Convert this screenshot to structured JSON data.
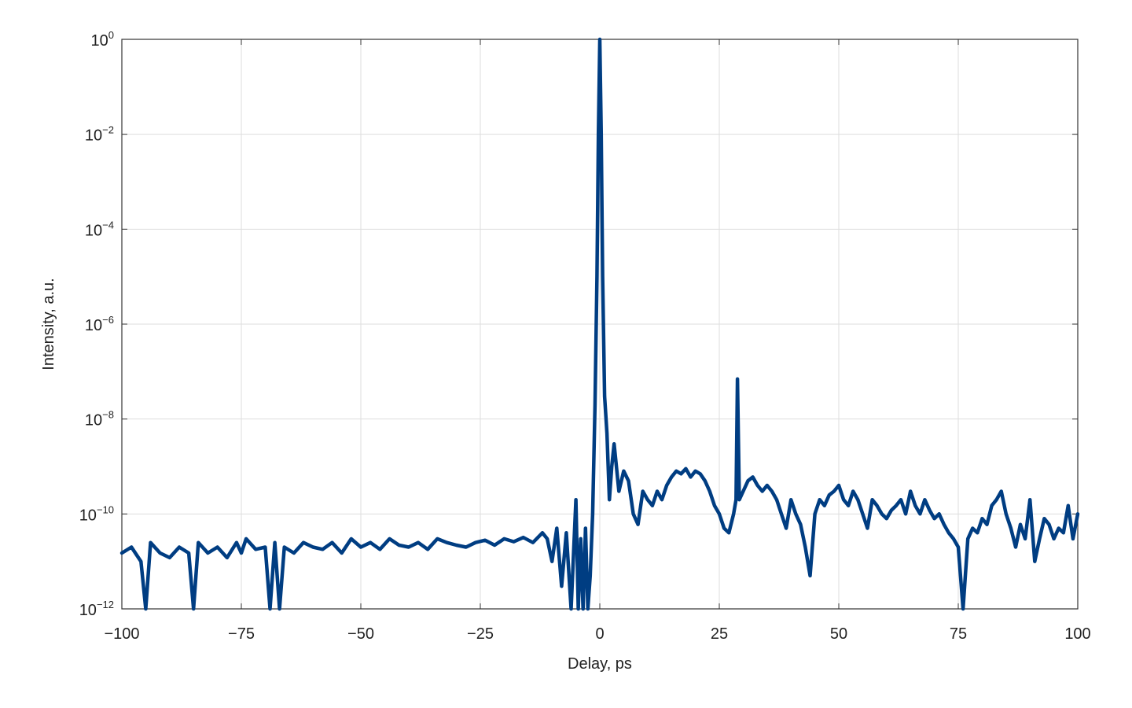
{
  "chart_data": {
    "type": "line",
    "title": "",
    "xlabel": "Delay, ps",
    "ylabel": "Intensity, a.u.",
    "xlim": [
      -100,
      100
    ],
    "ylim": [
      1e-12,
      1
    ],
    "yscale": "log",
    "grid": true,
    "x_ticks": [
      -100,
      -75,
      -50,
      -25,
      0,
      25,
      50,
      75,
      100
    ],
    "y_ticks": [
      {
        "base": "10",
        "exp": "0",
        "value": 1
      },
      {
        "base": "10",
        "exp": "-2",
        "value": 0.01
      },
      {
        "base": "10",
        "exp": "-4",
        "value": 0.0001
      },
      {
        "base": "10",
        "exp": "-6",
        "value": 1e-06
      },
      {
        "base": "10",
        "exp": "-8",
        "value": 1e-08
      },
      {
        "base": "10",
        "exp": "-10",
        "value": 1e-10
      },
      {
        "base": "10",
        "exp": "-12",
        "value": 1e-12
      }
    ],
    "series": [
      {
        "color": "#003d82",
        "x": [
          -100,
          -98,
          -96,
          -95,
          -94,
          -92,
          -90,
          -88,
          -86,
          -85,
          -84,
          -82,
          -80,
          -78,
          -76,
          -75,
          -74,
          -72,
          -70,
          -69,
          -68,
          -67,
          -66,
          -64,
          -62,
          -60,
          -58,
          -56,
          -54,
          -52,
          -50,
          -48,
          -46,
          -44,
          -42,
          -40,
          -38,
          -36,
          -34,
          -32,
          -30,
          -28,
          -26,
          -24,
          -22,
          -20,
          -18,
          -16,
          -14,
          -12,
          -11,
          -10,
          -9,
          -8,
          -7,
          -6,
          -5,
          -4.5,
          -4,
          -3.5,
          -3,
          -2.5,
          -2,
          -1.5,
          -1,
          -0.6,
          -0.3,
          0,
          0.3,
          0.6,
          1,
          1.5,
          2,
          2.5,
          3,
          4,
          5,
          6,
          7,
          8,
          9,
          10,
          11,
          12,
          13,
          14,
          15,
          16,
          17,
          18,
          19,
          20,
          21,
          22,
          23,
          24,
          25,
          26,
          27,
          28,
          28.5,
          28.8,
          29.2,
          30,
          31,
          32,
          33,
          34,
          35,
          36,
          37,
          38,
          39,
          40,
          41,
          42,
          43,
          44,
          45,
          46,
          47,
          48,
          49,
          50,
          51,
          52,
          53,
          54,
          55,
          56,
          57,
          58,
          59,
          60,
          61,
          62,
          63,
          64,
          65,
          66,
          67,
          68,
          69,
          70,
          71,
          72,
          73,
          74,
          75,
          76,
          77,
          78,
          79,
          80,
          81,
          82,
          83,
          84,
          85,
          86,
          87,
          88,
          89,
          90,
          91,
          92,
          93,
          94,
          95,
          96,
          97,
          98,
          99,
          100
        ],
        "y": [
          1.5e-11,
          2e-11,
          1e-11,
          1e-12,
          2.5e-11,
          1.5e-11,
          1.2e-11,
          2e-11,
          1.5e-11,
          1e-12,
          2.5e-11,
          1.5e-11,
          2e-11,
          1.2e-11,
          2.5e-11,
          1.5e-11,
          3e-11,
          1.8e-11,
          2e-11,
          1e-12,
          2.5e-11,
          1e-12,
          2e-11,
          1.5e-11,
          2.5e-11,
          2e-11,
          1.8e-11,
          2.5e-11,
          1.5e-11,
          3e-11,
          2e-11,
          2.5e-11,
          1.8e-11,
          3e-11,
          2.2e-11,
          2e-11,
          2.5e-11,
          1.8e-11,
          3e-11,
          2.5e-11,
          2.2e-11,
          2e-11,
          2.5e-11,
          2.8e-11,
          2.2e-11,
          3e-11,
          2.6e-11,
          3.2e-11,
          2.5e-11,
          4e-11,
          3e-11,
          1e-11,
          5e-11,
          3e-12,
          4e-11,
          1e-12,
          2e-10,
          1e-12,
          3e-11,
          1e-12,
          5e-11,
          1e-12,
          5e-12,
          1e-10,
          2e-08,
          1e-05,
          0.01,
          1,
          0.01,
          1e-05,
          3e-08,
          5e-09,
          2e-10,
          1e-09,
          3e-09,
          3e-10,
          8e-10,
          5e-10,
          1e-10,
          6e-11,
          3e-10,
          2e-10,
          1.5e-10,
          3e-10,
          2e-10,
          4e-10,
          6e-10,
          8e-10,
          7e-10,
          9e-10,
          6e-10,
          8e-10,
          7e-10,
          5e-10,
          3e-10,
          1.5e-10,
          1e-10,
          5e-11,
          4e-11,
          1e-10,
          2e-10,
          7e-08,
          2e-10,
          3e-10,
          5e-10,
          6e-10,
          4e-10,
          3e-10,
          4e-10,
          3e-10,
          2e-10,
          1e-10,
          5e-11,
          2e-10,
          1e-10,
          6e-11,
          2e-11,
          5e-12,
          1e-10,
          2e-10,
          1.5e-10,
          2.5e-10,
          3e-10,
          4e-10,
          2e-10,
          1.5e-10,
          3e-10,
          2e-10,
          1e-10,
          5e-11,
          2e-10,
          1.5e-10,
          1e-10,
          8e-11,
          1.2e-10,
          1.5e-10,
          2e-10,
          1e-10,
          3e-10,
          1.5e-10,
          1e-10,
          2e-10,
          1.2e-10,
          8e-11,
          1e-10,
          6e-11,
          4e-11,
          3e-11,
          2e-11,
          1e-12,
          3e-11,
          5e-11,
          4e-11,
          8e-11,
          6e-11,
          1.5e-10,
          2e-10,
          3e-10,
          1e-10,
          5e-11,
          2e-11,
          6e-11,
          3e-11,
          2e-10,
          1e-11,
          3e-11,
          8e-11,
          6e-11,
          3e-11,
          5e-11,
          4e-11,
          1.5e-10,
          3e-11,
          1e-10
        ]
      }
    ]
  }
}
